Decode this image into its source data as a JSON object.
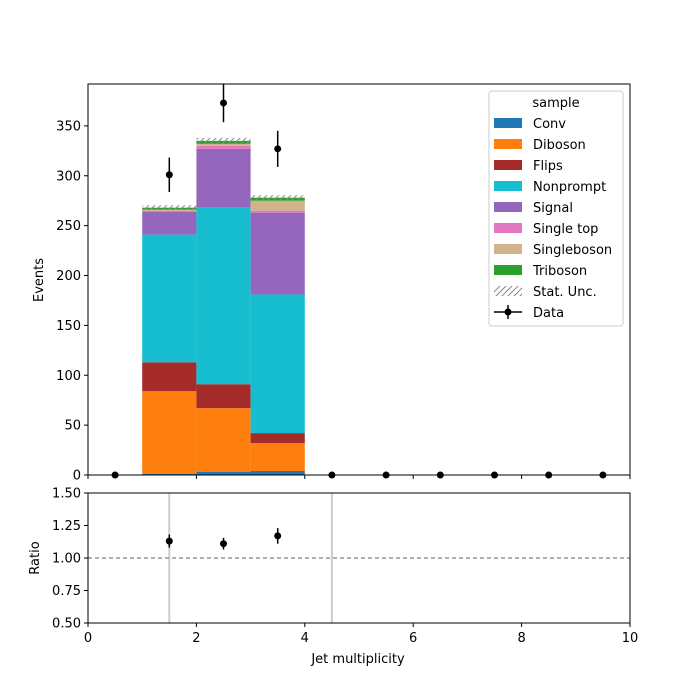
{
  "chart_data": [
    {
      "type": "bar",
      "stacked": true,
      "x_edges": [
        0,
        1,
        2,
        3,
        4,
        5,
        6,
        7,
        8,
        9,
        10
      ],
      "xlim": [
        0,
        10
      ],
      "ylim": [
        0,
        392
      ],
      "ylabel": "Events",
      "y_ticks": [
        0,
        50,
        100,
        150,
        200,
        250,
        300,
        350
      ],
      "legend": {
        "title": "sample",
        "location": "upper right"
      },
      "series": [
        {
          "name": "Conv",
          "color": "#1f77b4",
          "values": [
            0,
            1,
            3,
            4,
            0,
            0,
            0,
            0,
            0,
            0
          ]
        },
        {
          "name": "Diboson",
          "color": "#ff7f0e",
          "values": [
            0,
            83,
            64,
            28,
            0,
            0,
            0,
            0,
            0,
            0
          ]
        },
        {
          "name": "Flips",
          "color": "#a52a2a",
          "values": [
            0,
            29,
            24,
            10,
            0,
            0,
            0,
            0,
            0,
            0
          ]
        },
        {
          "name": "Nonprompt",
          "color": "#17becf",
          "values": [
            0,
            128,
            177,
            139,
            0,
            0,
            0,
            0,
            0,
            0
          ]
        },
        {
          "name": "Signal",
          "color": "#9467bd",
          "values": [
            0,
            23,
            59,
            82,
            0,
            0,
            0,
            0,
            0,
            0
          ]
        },
        {
          "name": "Single top",
          "color": "#e377c2",
          "values": [
            0,
            1,
            3,
            2,
            0,
            0,
            0,
            0,
            0,
            0
          ]
        },
        {
          "name": "Singleboson",
          "color": "#d2b48c",
          "values": [
            0,
            1,
            2,
            10,
            0,
            0,
            0,
            0,
            0,
            0
          ]
        },
        {
          "name": "Triboson",
          "color": "#2ca02c",
          "values": [
            0,
            2,
            3,
            3,
            0,
            0,
            0,
            0,
            0,
            0
          ]
        }
      ],
      "stat_unc": {
        "name": "Stat. Unc.",
        "color": "#888888",
        "values": [
          0,
          2.5,
          3,
          2.5,
          0,
          0,
          0,
          0,
          0,
          0
        ]
      },
      "data": {
        "name": "Data",
        "color": "#000000",
        "x": [
          0.5,
          1.5,
          2.5,
          3.5,
          4.5,
          5.5,
          6.5,
          7.5,
          8.5,
          9.5
        ],
        "y": [
          0,
          301,
          373,
          327,
          0,
          0,
          0,
          0,
          0,
          0
        ],
        "yerr": [
          0,
          17.3,
          19.3,
          18.1,
          0,
          0,
          0,
          0,
          0,
          0
        ]
      }
    },
    {
      "type": "scatter",
      "xlabel": "Jet multiplicity",
      "ylabel": "Ratio",
      "xlim": [
        0,
        10
      ],
      "ylim": [
        0.5,
        1.5
      ],
      "x_ticks": [
        0,
        2,
        4,
        6,
        8,
        10
      ],
      "y_ticks": [
        "0.50",
        "0.75",
        "1.00",
        "1.25",
        "1.50"
      ],
      "reference_line": 1.0,
      "bin_boundary_lines": [
        1.5,
        4.5
      ],
      "points": {
        "x": [
          1.5,
          2.5,
          3.5
        ],
        "y": [
          1.13,
          1.11,
          1.17
        ],
        "yerr": [
          0.05,
          0.045,
          0.06
        ]
      }
    }
  ]
}
